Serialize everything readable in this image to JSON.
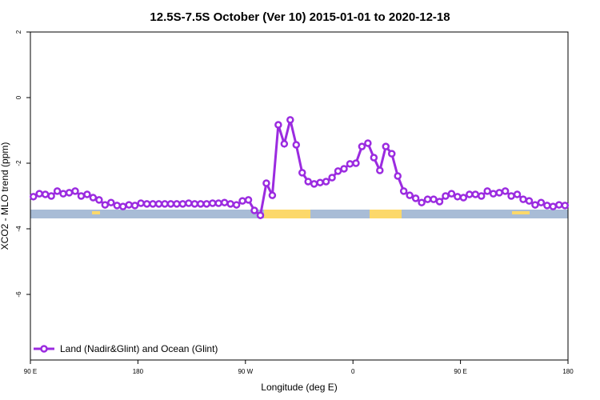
{
  "chart_data": {
    "type": "line",
    "title": "12.5S-7.5S October (Ver 10)   2015-01-01 to 2020-12-18",
    "x_label": "Longitude (deg E)",
    "y_label": "XCO2 - MLO trend (ppm)",
    "xlim": [
      90,
      540
    ],
    "ylim": [
      -8,
      2
    ],
    "xticks": [
      {
        "value": 90,
        "label": "90 E"
      },
      180,
      {
        "value": 270,
        "label": "90 W"
      },
      {
        "value": 360,
        "label": "0"
      },
      {
        "value": 450,
        "label": "90 E"
      },
      {
        "value": 540,
        "label": "180"
      }
    ],
    "yticks": [
      2,
      0,
      -2,
      -4,
      -6
    ],
    "legend": "bottom-left",
    "series": [
      {
        "name": "Land (Nadir&Glint) and Ocean (Glint)",
        "color": "#9b2be0",
        "x": [
          92.5,
          97.5,
          102.5,
          107.5,
          112.5,
          117.5,
          122.5,
          127.5,
          132.5,
          137.5,
          142.5,
          147.5,
          152.5,
          157.5,
          162.5,
          167.5,
          172.5,
          177.5,
          182.5,
          187.5,
          192.5,
          197.5,
          202.5,
          207.5,
          212.5,
          217.5,
          222.5,
          227.5,
          232.5,
          237.5,
          242.5,
          247.5,
          252.5,
          257.5,
          262.5,
          267.5,
          272.5,
          277.5,
          282.5,
          287.5,
          292.5,
          297.5,
          302.5,
          307.5,
          312.5,
          317.5,
          322.5,
          327.5,
          332.5,
          337.5,
          342.5,
          347.5,
          352.5,
          357.5,
          362.5,
          367.5,
          372.5,
          377.5,
          382.5,
          387.5,
          392.5,
          397.5,
          402.5,
          407.5,
          412.5,
          417.5,
          422.5,
          427.5,
          432.5,
          437.5,
          442.5,
          447.5,
          452.5,
          457.5,
          462.5,
          467.5,
          472.5,
          477.5,
          482.5,
          487.5,
          492.5,
          497.5,
          502.5,
          507.5,
          512.5,
          517.5,
          522.5,
          527.5,
          532.5,
          537.5
        ],
        "values": [
          -3.02,
          -2.93,
          -2.95,
          -3.0,
          -2.85,
          -2.93,
          -2.9,
          -2.85,
          -3.0,
          -2.95,
          -3.05,
          -3.12,
          -3.27,
          -3.2,
          -3.29,
          -3.32,
          -3.27,
          -3.29,
          -3.22,
          -3.24,
          -3.24,
          -3.24,
          -3.24,
          -3.24,
          -3.24,
          -3.24,
          -3.22,
          -3.24,
          -3.24,
          -3.24,
          -3.22,
          -3.22,
          -3.2,
          -3.24,
          -3.27,
          -3.15,
          -3.12,
          -3.44,
          -3.59,
          -2.61,
          -2.98,
          -0.83,
          -1.41,
          -0.68,
          -1.44,
          -2.29,
          -2.56,
          -2.63,
          -2.59,
          -2.56,
          -2.44,
          -2.24,
          -2.17,
          -2.02,
          -2.0,
          -1.49,
          -1.39,
          -1.83,
          -2.22,
          -1.49,
          -1.71,
          -2.39,
          -2.85,
          -2.98,
          -3.07,
          -3.2,
          -3.1,
          -3.1,
          -3.17,
          -3.0,
          -2.93,
          -3.02,
          -3.05,
          -2.95,
          -2.95,
          -3.0,
          -2.85,
          -2.93,
          -2.9,
          -2.85,
          -3.0,
          -2.95,
          -3.1,
          -3.15,
          -3.27,
          -3.2,
          -3.29,
          -3.32,
          -3.27,
          -3.29
        ]
      }
    ]
  }
}
